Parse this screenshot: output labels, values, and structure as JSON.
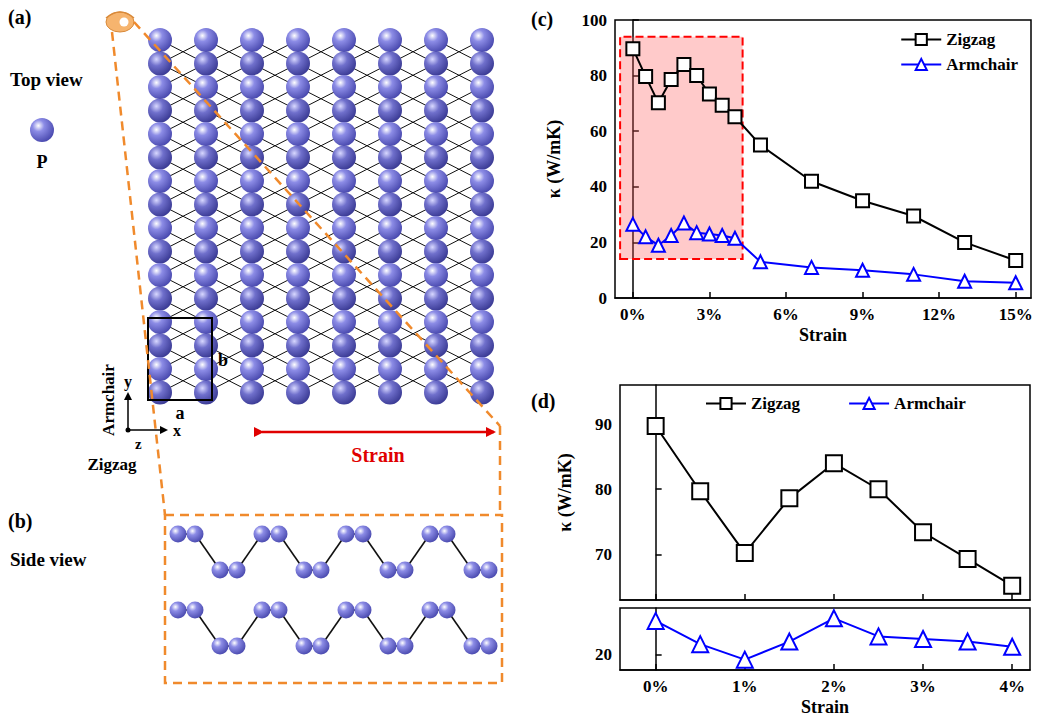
{
  "chart_data": [
    {
      "type": "line",
      "panel": "(c)",
      "xlabel": "Strain",
      "ylabel": "κ (W/mK)",
      "x": [
        0,
        0.5,
        1,
        1.5,
        2,
        2.5,
        3,
        3.5,
        4,
        5,
        7,
        9,
        11,
        13,
        15
      ],
      "series": [
        {
          "name": "Zigzag",
          "color": "#000000",
          "marker": "square",
          "line_style": "solid",
          "values": [
            89.7,
            79.7,
            70.2,
            78.6,
            84.0,
            80.0,
            73.4,
            69.3,
            65.2,
            55.0,
            42.0,
            35.0,
            29.5,
            20.0,
            13.5
          ]
        },
        {
          "name": "Armchair",
          "color": "#0000ff",
          "marker": "triangle",
          "line_style": "solid",
          "values": [
            26.5,
            22.0,
            19.0,
            22.5,
            27.0,
            23.5,
            23.0,
            22.5,
            21.5,
            13.0,
            11.0,
            10.0,
            8.5,
            6.0,
            5.5
          ]
        }
      ],
      "shaded_region": {
        "x": [
          -0.5,
          4.3
        ],
        "y": [
          14,
          94
        ]
      },
      "xlim": [
        -0.7,
        15.6
      ],
      "xticks": [
        {
          "value": 0,
          "label": "0%"
        },
        {
          "value": 3,
          "label": "3%"
        },
        {
          "value": 6,
          "label": "6%"
        },
        {
          "value": 9,
          "label": "9%"
        },
        {
          "value": 12,
          "label": "12%"
        },
        {
          "value": 15,
          "label": "15%"
        }
      ],
      "ylim": [
        0,
        100
      ],
      "yticks": [
        0,
        20,
        40,
        60,
        80,
        100
      ],
      "grid": false,
      "legend": "upper right"
    },
    {
      "type": "line",
      "panel": "(d)",
      "xlabel": "Strain",
      "ylabel": "κ (W/mK)",
      "x": [
        0,
        0.5,
        1,
        1.5,
        2,
        2.5,
        3,
        3.5,
        4
      ],
      "series": [
        {
          "name": "Zigzag",
          "color": "#000000",
          "marker": "square",
          "line_style": "solid",
          "values": [
            89.7,
            79.7,
            70.2,
            78.6,
            84.0,
            80.0,
            73.4,
            69.3,
            65.2
          ]
        },
        {
          "name": "Armchair",
          "color": "#0000ff",
          "marker": "triangle",
          "line_style": "solid",
          "axis": "y2",
          "values": [
            26.5,
            22.0,
            19.0,
            22.5,
            27.0,
            23.5,
            23.0,
            22.5,
            21.5
          ]
        }
      ],
      "xlim": [
        -0.4,
        4.2
      ],
      "xticks": [
        {
          "value": 0,
          "label": "0%"
        },
        {
          "value": 1,
          "label": "1%"
        },
        {
          "value": 2,
          "label": "2%"
        },
        {
          "value": 3,
          "label": "3%"
        },
        {
          "value": 4,
          "label": "4%"
        }
      ],
      "ylim": [
        63,
        96
      ],
      "yticks": [
        70,
        80,
        90
      ],
      "y2lim": [
        17,
        29
      ],
      "y2ticks": [
        20
      ],
      "grid": false,
      "legend": "upper center"
    }
  ],
  "structure": {
    "top_view": {
      "panel": "(a)",
      "title": "Top view",
      "atom_label": "P",
      "x_axis": "x",
      "y_axis": "y",
      "z_axis": "z",
      "x_direction": "Zigzag",
      "y_direction": "Armchair",
      "cell_a": "a",
      "cell_b": "b",
      "arrow_label": "Strain"
    },
    "side_view": {
      "panel": "(b)",
      "title": "Side view"
    }
  }
}
